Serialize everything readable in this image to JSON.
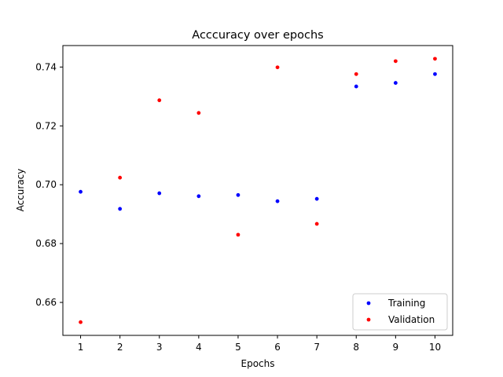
{
  "chart_data": {
    "type": "scatter",
    "title": "Acccuracy over epochs",
    "xlabel": "Epochs",
    "ylabel": "Accuracy",
    "x": [
      1,
      2,
      3,
      4,
      5,
      6,
      7,
      8,
      9,
      10
    ],
    "x_ticks": [
      1,
      2,
      3,
      4,
      5,
      6,
      7,
      8,
      9,
      10
    ],
    "y_ticks": [
      0.66,
      0.68,
      0.7,
      0.72,
      0.74
    ],
    "xlim": [
      0.55,
      10.45
    ],
    "ylim": [
      0.6488,
      0.7473
    ],
    "grid": false,
    "legend_position": "lower-right",
    "series": [
      {
        "name": "Training",
        "color": "#0000ff",
        "values": [
          0.6976,
          0.6918,
          0.6971,
          0.6961,
          0.6965,
          0.6944,
          0.6952,
          0.7334,
          0.7346,
          0.7376
        ]
      },
      {
        "name": "Validation",
        "color": "#ff0000",
        "values": [
          0.6533,
          0.7024,
          0.7287,
          0.7244,
          0.683,
          0.7399,
          0.6867,
          0.7376,
          0.742,
          0.7428
        ]
      }
    ]
  }
}
